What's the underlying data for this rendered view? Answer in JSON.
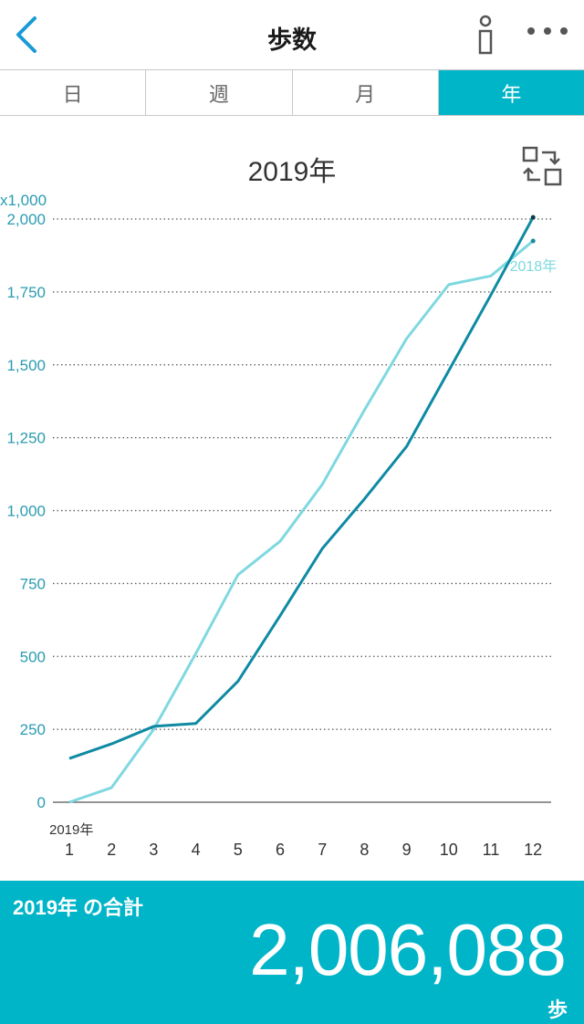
{
  "header": {
    "title": "歩数"
  },
  "tabs": [
    {
      "label": "日",
      "active": false
    },
    {
      "label": "週",
      "active": false
    },
    {
      "label": "月",
      "active": false
    },
    {
      "label": "年",
      "active": true
    }
  ],
  "chart_title": "2019年",
  "chart_data": {
    "type": "line",
    "y_unit_label": "x1,000",
    "x_year_label": "2019年",
    "categories": [
      "1",
      "2",
      "3",
      "4",
      "5",
      "6",
      "7",
      "8",
      "9",
      "10",
      "11",
      "12"
    ],
    "ylim": [
      0,
      2000
    ],
    "yticks": [
      "0",
      "250",
      "500",
      "750",
      "1,000",
      "1,250",
      "1,500",
      "1,750",
      "2,000"
    ],
    "grid": true,
    "series": [
      {
        "name": "",
        "color": "#0e8aa3",
        "values": [
          150,
          200,
          260,
          270,
          415,
          640,
          870,
          1040,
          1220,
          1480,
          1740,
          2006
        ]
      },
      {
        "name": "2018年",
        "color": "#7fd8e0",
        "values": [
          0,
          50,
          250,
          510,
          780,
          895,
          1090,
          1345,
          1590,
          1775,
          1805,
          1925
        ]
      }
    ]
  },
  "footer": {
    "label": "2019年 の合計",
    "total": "2,006,088",
    "unit": "歩"
  },
  "colors": {
    "accent": "#00b5c8",
    "back_icon": "#1a9ad6"
  }
}
